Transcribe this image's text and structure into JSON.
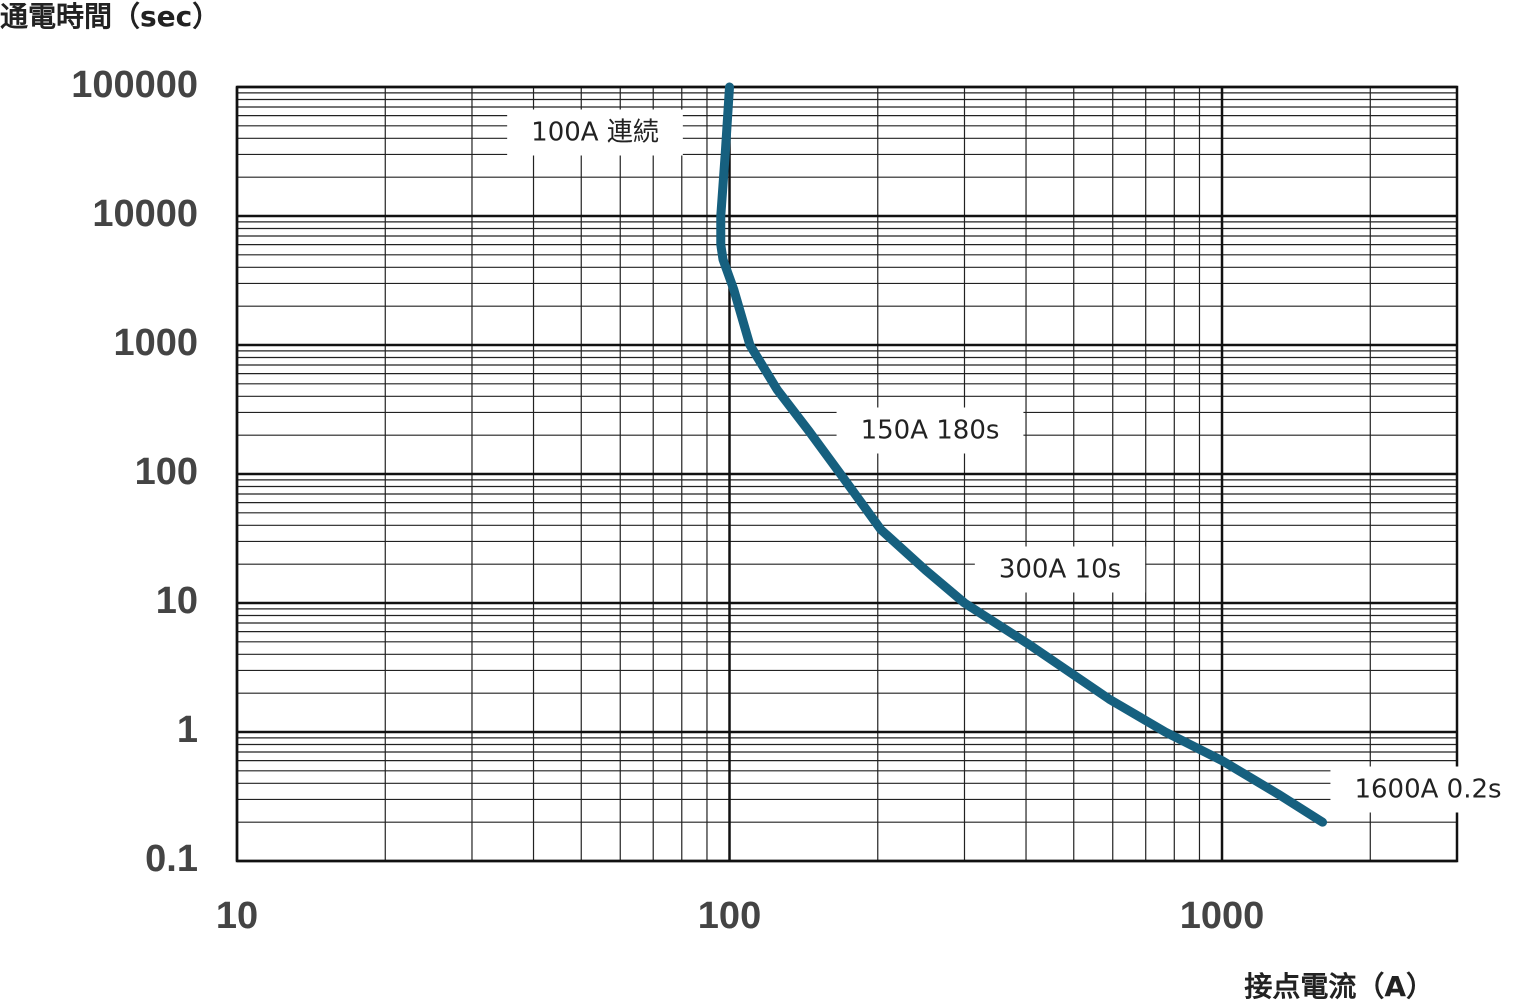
{
  "chart_data": {
    "type": "line",
    "y_label": "通電時間（sec）",
    "x_label": "接点電流（A）",
    "x": [
      100,
      98,
      96,
      96,
      97,
      102,
      110,
      125,
      145,
      168,
      203,
      250,
      300,
      408,
      590,
      767,
      1000,
      1300,
      1600
    ],
    "series": [
      {
        "color": "#16607f",
        "values": [
          100000,
          30000,
          10000,
          6000,
          4600,
          2700,
          1000,
          450,
          215,
          100,
          37,
          18,
          10,
          4.7,
          1.8,
          1,
          0.6,
          0.33,
          0.2
        ]
      }
    ],
    "xlim": [
      10,
      3000
    ],
    "xticks": [
      10,
      100,
      1000
    ],
    "ylim": [
      0.1,
      100000
    ],
    "yticks": [
      0.1,
      1,
      10,
      100,
      1000,
      10000,
      100000
    ],
    "xscale": "log",
    "yscale": "log",
    "grid": true,
    "minor_grid": true,
    "annotations": [
      "100A 連続",
      "150A 180s",
      "300A 10s",
      "1600A 0.2s"
    ]
  }
}
